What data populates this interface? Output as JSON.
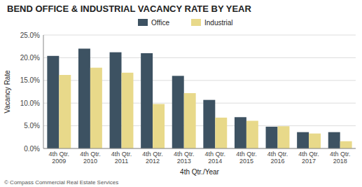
{
  "chart_data": {
    "type": "bar",
    "title": "BEND OFFICE & INDUSTRIAL VACANCY RATE BY YEAR",
    "categories": [
      "4th Qtr.\n2009",
      "4th Qtr.\n2010",
      "4th Qtr.\n2011",
      "4th Qtr.\n2012",
      "4th Qtr.\n2013",
      "4th Qtr.\n2014",
      "4th Qtr.\n2015",
      "4th Qtr.\n2016",
      "4th Qtr.\n2017",
      "4th Qtr.\n2018"
    ],
    "series": [
      {
        "name": "Office",
        "color": "#3d5262",
        "values": [
          0.204,
          0.22,
          0.212,
          0.21,
          0.16,
          0.107,
          0.069,
          0.048,
          0.036,
          0.036
        ]
      },
      {
        "name": "Industrial",
        "color": "#e8d98a",
        "values": [
          0.162,
          0.178,
          0.167,
          0.098,
          0.122,
          0.068,
          0.061,
          0.049,
          0.033,
          0.016
        ]
      }
    ],
    "x_label": "4th Qtr./Year",
    "y_label": "Vacancy Rate",
    "ylim": [
      0,
      0.25
    ],
    "yticks": [
      {
        "value": 0.0,
        "label": "0.0%"
      },
      {
        "value": 0.05,
        "label": "5.0%"
      },
      {
        "value": 0.1,
        "label": "10.0%"
      },
      {
        "value": 0.15,
        "label": "15.0%"
      },
      {
        "value": 0.2,
        "label": "20.0%"
      },
      {
        "value": 0.25,
        "label": "25.0%"
      }
    ],
    "grid": true,
    "legend": "top",
    "annotations": [
      "© Compass Commercial Real Estate Services"
    ]
  }
}
